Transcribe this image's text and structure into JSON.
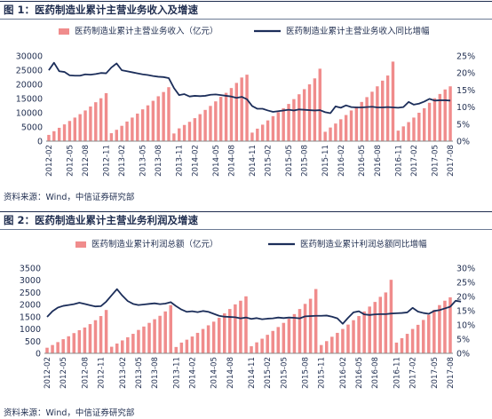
{
  "chart_data": [
    {
      "type": "bar",
      "title": "图 1：医药制造业累计主营业务收入及增速",
      "source": "资料来源：Wind，中信证券研究部",
      "legend": {
        "bar": "医药制造业累计主营业务收入（亿元）",
        "line": "医药制造业累计主营业务收入同比增幅"
      },
      "y_left": {
        "min": 0,
        "max": 30000,
        "ticks": [
          0,
          5000,
          10000,
          15000,
          20000,
          25000,
          30000
        ]
      },
      "y_right": {
        "min": 0,
        "max": 25,
        "ticks": [
          "0%",
          "5%",
          "10%",
          "15%",
          "20%",
          "25%"
        ]
      },
      "x_ticks": [
        "2012-02",
        "2012-05",
        "2012-08",
        "2012-11",
        "2013-02",
        "2013-05",
        "2013-08",
        "2013-11",
        "2014-02",
        "2014-05",
        "2014-08",
        "2014-11",
        "2015-02",
        "2015-05",
        "2015-08",
        "2015-11",
        "2016-02",
        "2016-05",
        "2016-08",
        "2016-11",
        "2017-02",
        "2017-05",
        "2017-08"
      ],
      "colors": {
        "bar": "#f08c8c",
        "line": "#1c2e5a"
      },
      "bar_values": [
        2200,
        3500,
        4700,
        5900,
        7100,
        8300,
        9500,
        10800,
        12200,
        13700,
        15100,
        16900,
        2800,
        4000,
        5400,
        6900,
        8300,
        9700,
        11200,
        12600,
        14200,
        15800,
        17300,
        19000,
        2700,
        4500,
        5700,
        6800,
        8100,
        9500,
        11000,
        12400,
        14000,
        15600,
        17000,
        18700,
        20500,
        22400,
        23400,
        3000,
        4400,
        5800,
        7300,
        8800,
        10200,
        11600,
        13100,
        14800,
        16500,
        18300,
        20000,
        22100,
        25500,
        3300,
        4800,
        6200,
        7700,
        9200,
        10800,
        12200,
        13800,
        15500,
        17400,
        19300,
        21300,
        23100,
        28000,
        3700,
        5200,
        6700,
        8300,
        10000,
        11600,
        13500,
        15100,
        16600,
        18200,
        19300
      ],
      "line_values": [
        20.8,
        23.0,
        20.5,
        20.3,
        19.3,
        19.2,
        19.2,
        19.6,
        19.5,
        19.7,
        20.0,
        19.9,
        21.6,
        22.8,
        20.8,
        20.5,
        20.2,
        19.9,
        19.6,
        19.4,
        19.1,
        18.9,
        18.8,
        18.5,
        15.6,
        13.5,
        13.8,
        13.1,
        13.3,
        13.2,
        13.3,
        13.6,
        13.7,
        13.5,
        13.3,
        13.1,
        12.7,
        13.0,
        12.3,
        10.3,
        9.5,
        9.5,
        9.0,
        8.6,
        8.8,
        9.0,
        9.2,
        9.0,
        9.3,
        9.2,
        9.1,
        9.0,
        9.1,
        8.5,
        8.2,
        10.2,
        9.8,
        10.5,
        10.0,
        9.9,
        9.9,
        10.0,
        10.1,
        9.9,
        9.9,
        10.0,
        9.9,
        9.8,
        10.0,
        11.5,
        10.7,
        11.0,
        11.6,
        12.4,
        11.9,
        12.0,
        12.0,
        11.9
      ]
    },
    {
      "type": "bar",
      "title": "图 2：医药制造业累计主营业务利润及增速",
      "source": "资料来源：Wind，中信证券研究部",
      "legend": {
        "bar": "医药制造业累计利润总额（亿元）",
        "line": "医药制造业累计利润总额同比增幅"
      },
      "y_left": {
        "min": 0,
        "max": 3500,
        "ticks": [
          0,
          500,
          1000,
          1500,
          2000,
          2500,
          3000,
          3500
        ]
      },
      "y_right": {
        "min": 0,
        "max": 30,
        "ticks": [
          "0%",
          "5%",
          "10%",
          "15%",
          "20%",
          "25%",
          "30%"
        ]
      },
      "x_ticks": [
        "2012-02",
        "2012-05",
        "2012-08",
        "2012-11",
        "2013-02",
        "2013-05",
        "2013-08",
        "2013-11",
        "2014-02",
        "2014-05",
        "2014-08",
        "2014-11",
        "2015-02",
        "2015-05",
        "2015-08",
        "2015-11",
        "2016-02",
        "2016-05",
        "2016-08",
        "2016-11",
        "2017-02",
        "2017-05",
        "2017-08"
      ],
      "colors": {
        "bar": "#f08c8c",
        "line": "#1c2e5a"
      },
      "bar_values": [
        230,
        340,
        460,
        580,
        700,
        830,
        950,
        1060,
        1200,
        1360,
        1530,
        1780,
        270,
        400,
        530,
        660,
        800,
        960,
        1100,
        1250,
        1400,
        1540,
        1720,
        1980,
        260,
        440,
        560,
        690,
        840,
        1000,
        1150,
        1300,
        1460,
        1640,
        1820,
        2010,
        2160,
        2340,
        290,
        450,
        600,
        760,
        920,
        1080,
        1250,
        1420,
        1610,
        1820,
        2030,
        2240,
        2640,
        340,
        500,
        680,
        840,
        1000,
        1180,
        1360,
        1530,
        1720,
        1920,
        2110,
        2320,
        2500,
        3020,
        440,
        620,
        800,
        1000,
        1170,
        1370,
        1580,
        1780,
        1980,
        2160,
        2300
      ],
      "line_values": [
        12.8,
        14.8,
        16.1,
        16.7,
        17.0,
        17.3,
        17.8,
        17.4,
        16.9,
        16.5,
        16.6,
        18.2,
        20.4,
        22.6,
        20.3,
        18.4,
        17.4,
        17.0,
        17.2,
        17.4,
        17.6,
        17.3,
        17.5,
        18.0,
        16.6,
        15.4,
        14.6,
        14.8,
        14.5,
        14.9,
        14.6,
        13.9,
        13.2,
        12.9,
        12.8,
        12.7,
        12.3,
        12.6,
        12.1,
        12.4,
        12.0,
        12.2,
        12.3,
        12.6,
        12.4,
        12.6,
        12.5,
        12.3,
        13.0,
        13.1,
        13.2,
        13.2,
        13.3,
        12.9,
        12.3,
        10.4,
        12.5,
        14.4,
        14.8,
        13.7,
        13.5,
        13.7,
        13.8,
        13.8,
        14.0,
        14.1,
        14.2,
        14.4,
        16.0,
        14.7,
        14.2,
        13.9,
        14.9,
        15.2,
        15.8,
        16.4,
        18.5,
        18.2
      ]
    }
  ]
}
